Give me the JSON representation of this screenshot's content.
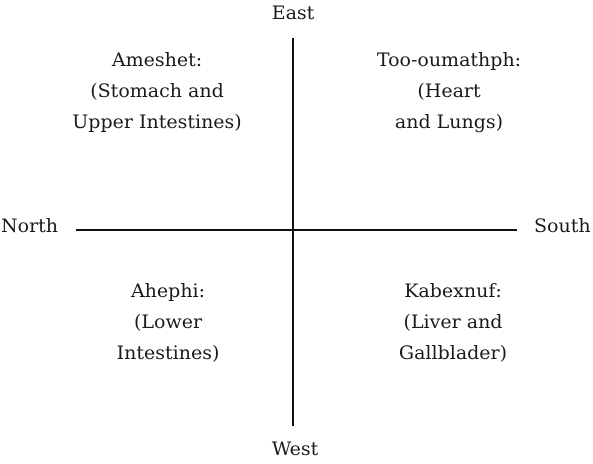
{
  "directions": {
    "east": "East",
    "west": "West",
    "north": "North",
    "south": "South"
  },
  "quadrants": {
    "top_left": {
      "name": "Ameshet:",
      "lines": [
        "(Stomach and",
        "Upper Intestines)"
      ]
    },
    "top_right": {
      "name": "Too-oumathph:",
      "lines": [
        "(Heart",
        "and Lungs)"
      ]
    },
    "bottom_left": {
      "name": "Ahephi:",
      "lines": [
        "(Lower",
        "Intestines)"
      ]
    },
    "bottom_right": {
      "name": "Kabexnuf:",
      "lines": [
        "(Liver and",
        "Gallblader)"
      ]
    }
  }
}
